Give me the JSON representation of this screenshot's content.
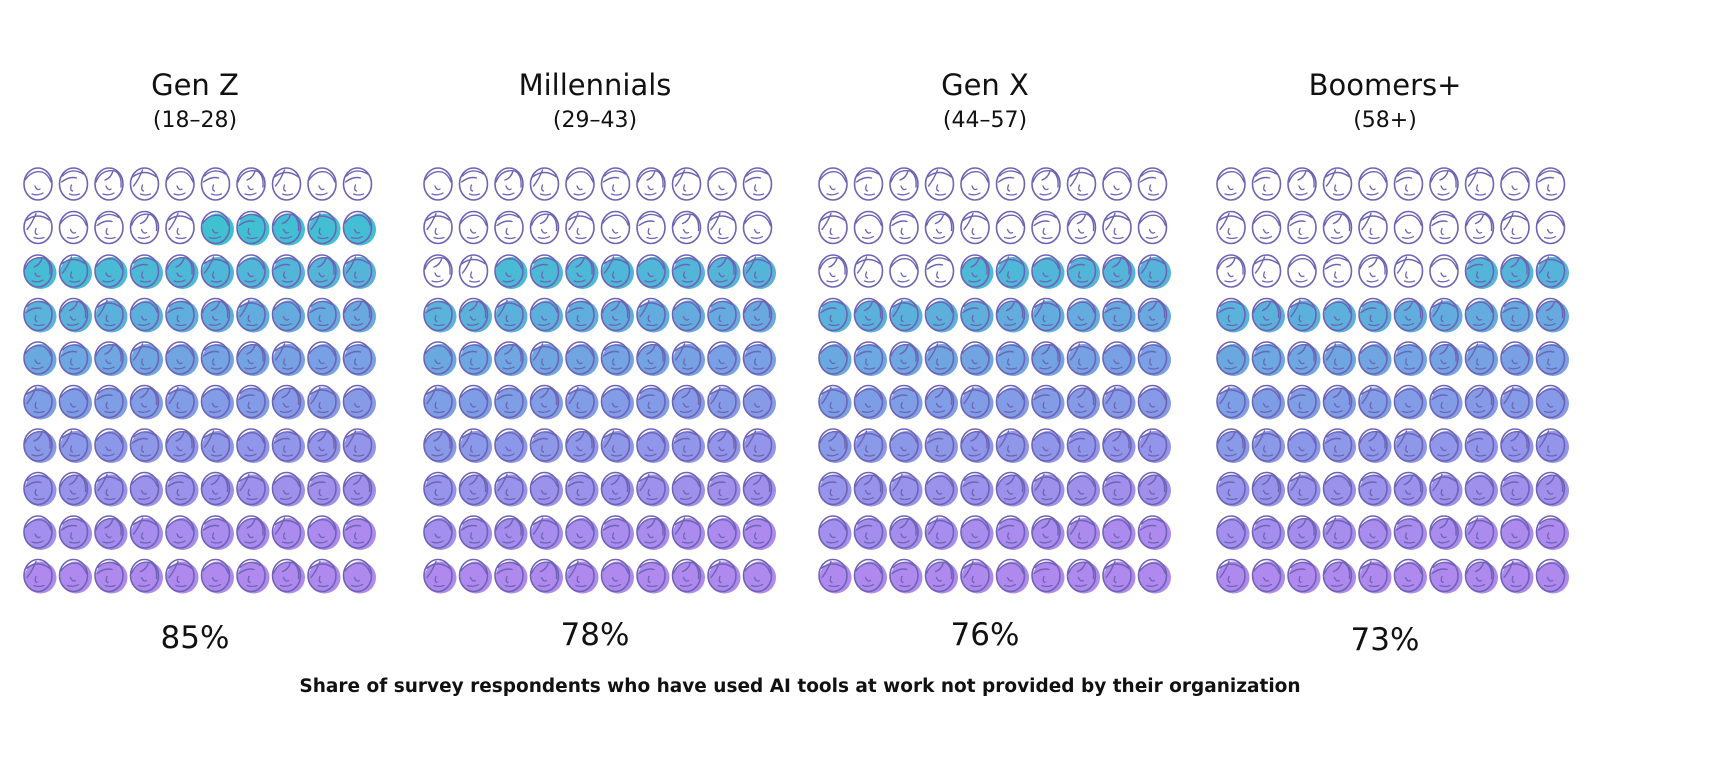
{
  "chart_data": {
    "type": "pictogram-waffle",
    "caption": "Share of survey respondents who have used AI tools at work not provided by their organization",
    "units_per_panel": 100,
    "unit_label": "respondents",
    "panels": [
      {
        "label": "Gen Z",
        "range": "(18–28)",
        "value": 85,
        "value_label": "85%"
      },
      {
        "label": "Millennials",
        "range": "(29–43)",
        "value": 78,
        "value_label": "78%"
      },
      {
        "label": "Gen X",
        "range": "(44–57)",
        "value": 76,
        "value_label": "76%"
      },
      {
        "label": "Boomers+",
        "range": "(58+)",
        "value": 73,
        "value_label": "73%"
      }
    ],
    "colors": {
      "outline": "#6e64b4",
      "fill_top": "#35c7cf",
      "fill_mid": "#7c9fe6",
      "fill_bottom": "#b089ef",
      "unfilled": "#ffffff"
    }
  }
}
